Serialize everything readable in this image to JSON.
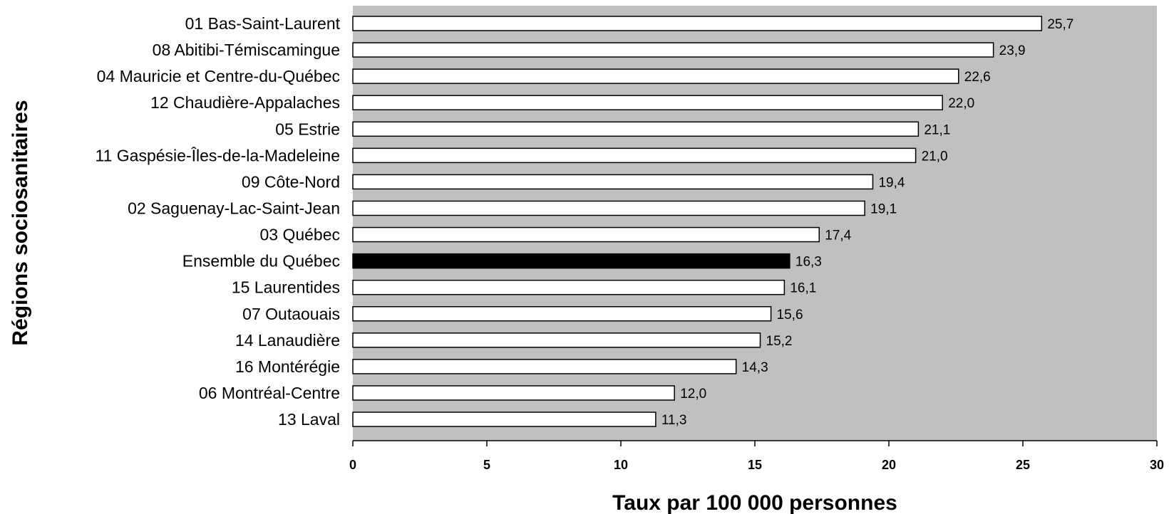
{
  "chart_data": {
    "type": "bar",
    "orientation": "horizontal",
    "title": "",
    "xlabel": "Taux par 100 000 personnes",
    "ylabel": "Régions sociosanitaires",
    "xlim": [
      0,
      30
    ],
    "xticks": [
      "0",
      "5",
      "10",
      "15",
      "20",
      "25",
      "30"
    ],
    "grid": false,
    "legend": "none",
    "categories": [
      "01 Bas-Saint-Laurent",
      "08 Abitibi-Témiscamingue",
      "04 Mauricie et Centre-du-Québec",
      "12 Chaudière-Appalaches",
      "05 Estrie",
      "11 Gaspésie-Îles-de-la-Madeleine",
      "09 Côte-Nord",
      "02 Saguenay-Lac-Saint-Jean",
      "03 Québec",
      "Ensemble du Québec",
      "15 Laurentides",
      "07 Outaouais",
      "14 Lanaudière",
      "16 Montérégie",
      "06 Montréal-Centre",
      "13 Laval"
    ],
    "values": [
      25.7,
      23.9,
      22.6,
      22.0,
      21.1,
      21.0,
      19.4,
      19.1,
      17.4,
      16.3,
      16.1,
      15.6,
      15.2,
      14.3,
      12.0,
      11.3
    ],
    "value_labels": [
      "25,7",
      "23,9",
      "22,6",
      "22,0",
      "21,1",
      "21,0",
      "19,4",
      "19,1",
      "17,4",
      "16,3",
      "16,1",
      "15,6",
      "15,2",
      "14,3",
      "12,0",
      "11,3"
    ],
    "highlight_category": "Ensemble du Québec",
    "colors": {
      "plot_background": "#c0c0c0",
      "bar_fill": "#ffffff",
      "bar_stroke": "#000000",
      "highlight_fill": "#000000"
    }
  }
}
